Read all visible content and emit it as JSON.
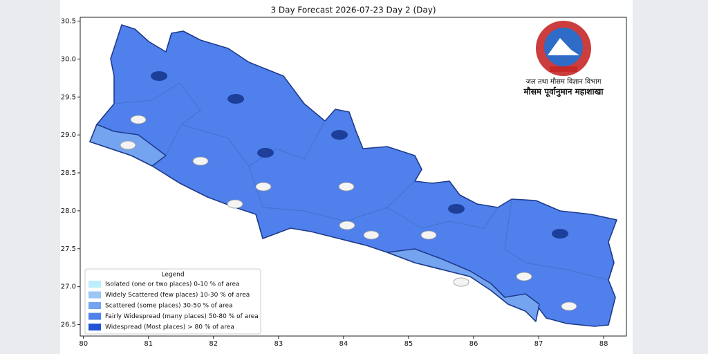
{
  "map": {
    "title": "3 Day Forecast 2026-07-23 Day 2 (Day)",
    "xlim": [
      79.95,
      88.35
    ],
    "ylim": [
      26.35,
      30.55
    ],
    "xticks": [
      80,
      81,
      82,
      83,
      84,
      85,
      86,
      87,
      88
    ],
    "yticks": [
      26.5,
      {
        "value": 27,
        "label": "27.0"
      },
      27.5,
      {
        "value": 28,
        "label": "28.0"
      },
      28.5,
      {
        "value": 29,
        "label": "29.0"
      },
      29.5,
      {
        "value": 30,
        "label": "30.0"
      },
      30.5
    ],
    "legend": {
      "title": "Legend",
      "items": [
        {
          "label": "Isolated (one or two places)  0-10 % of area",
          "color": "#bdeefb"
        },
        {
          "label": "Widely Scattered (few places)  10-30 % of area",
          "color": "#9cc6f6"
        },
        {
          "label": "Scattered (some places)  30-50 % of area",
          "color": "#74a4f0"
        },
        {
          "label": "Fairly Widespread (many places)  50-80 % of area",
          "color": "#4f80ec"
        },
        {
          "label": "Widespread (Most places) > 80 % of area",
          "color": "#2353d4"
        }
      ]
    },
    "logo": {
      "line1": "जल तथा मौसम विज्ञान विभाग",
      "line2": "मौसम पूर्वानुमान महाशाखा"
    }
  }
}
